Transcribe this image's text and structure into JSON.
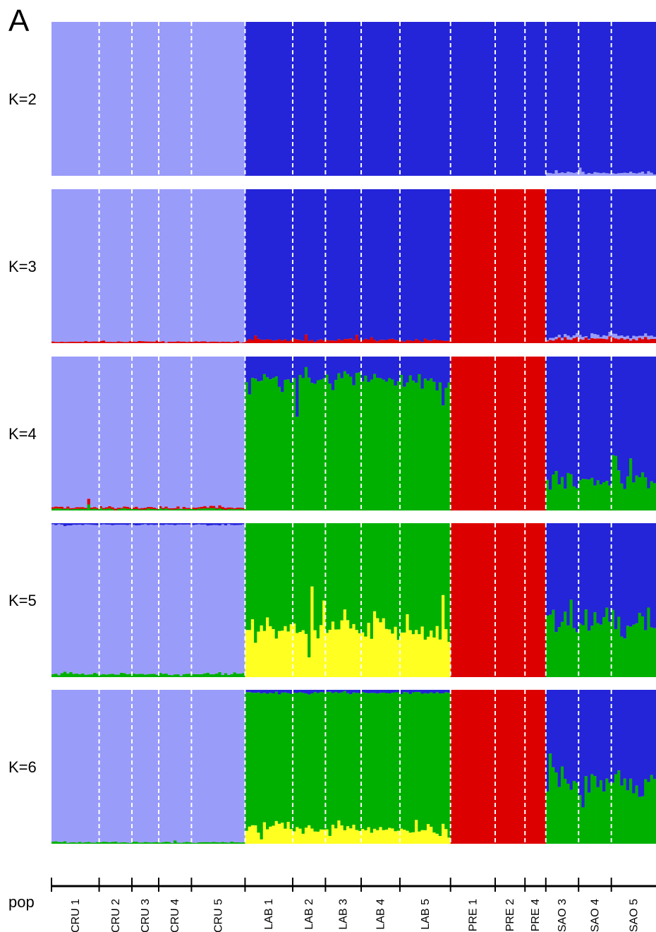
{
  "panel_label": "A",
  "axis_title": "pop",
  "colors": {
    "lavender": "#9a9cfa",
    "blue": "#2424d8",
    "red": "#dd0000",
    "green": "#00b000",
    "yellow": "#ffff22",
    "separator": "#ffffff",
    "axis": "#000000"
  },
  "chart_data": {
    "type": "stacked-bar",
    "description_of_values": "Each bar is an individual; heights are ancestry proportions (0-1) per cluster, stacked from bottom.",
    "populations": [
      {
        "name": "CRU 1",
        "n": 16
      },
      {
        "name": "CRU 2",
        "n": 11
      },
      {
        "name": "CRU 3",
        "n": 9
      },
      {
        "name": "CRU 4",
        "n": 11
      },
      {
        "name": "CRU 5",
        "n": 18
      },
      {
        "name": "LAB 1",
        "n": 16
      },
      {
        "name": "LAB 2",
        "n": 11
      },
      {
        "name": "LAB 3",
        "n": 12
      },
      {
        "name": "LAB 4",
        "n": 13
      },
      {
        "name": "LAB 5",
        "n": 17
      },
      {
        "name": "PRE 1",
        "n": 15
      },
      {
        "name": "PRE 2",
        "n": 10
      },
      {
        "name": "PRE 4",
        "n": 7
      },
      {
        "name": "SAO 3",
        "n": 11
      },
      {
        "name": "SAO 4",
        "n": 11
      },
      {
        "name": "SAO 5",
        "n": 15
      }
    ],
    "panels": [
      {
        "label": "K=2",
        "base": {
          "CRU": {
            "lavender": 1.0
          },
          "LAB": {
            "blue": 1.0
          },
          "PRE": {
            "blue": 1.0
          },
          "SAO": {
            "blue": 0.98,
            "lavender": 0.02
          }
        }
      },
      {
        "label": "K=3",
        "base": {
          "CRU": {
            "lavender": 0.99,
            "red": 0.01
          },
          "LAB": {
            "blue": 0.98,
            "red": 0.02
          },
          "PRE": {
            "red": 1.0
          },
          "SAO": {
            "blue": 0.95,
            "red": 0.03,
            "lavender": 0.02
          }
        }
      },
      {
        "label": "K=4",
        "base": {
          "CRU": {
            "lavender": 0.98,
            "green": 0.01,
            "red": 0.01
          },
          "LAB": {
            "green": 0.85,
            "blue": 0.15
          },
          "PRE": {
            "red": 1.0
          },
          "SAO": {
            "green": 0.2,
            "blue": 0.8
          }
        }
      },
      {
        "label": "K=5",
        "base": {
          "CRU": {
            "lavender": 0.97,
            "green": 0.02,
            "blue": 0.01
          },
          "LAB": {
            "yellow": 0.3,
            "green": 0.7
          },
          "PRE": {
            "red": 1.0
          },
          "SAO": {
            "green": 0.35,
            "blue": 0.65
          }
        }
      },
      {
        "label": "K=6",
        "base": {
          "CRU": {
            "lavender": 0.99,
            "green": 0.01
          },
          "LAB": {
            "yellow": 0.1,
            "green": 0.88,
            "blue": 0.02
          },
          "PRE": {
            "red": 1.0
          },
          "SAO": {
            "green": 0.4,
            "blue": 0.6
          }
        }
      }
    ]
  }
}
